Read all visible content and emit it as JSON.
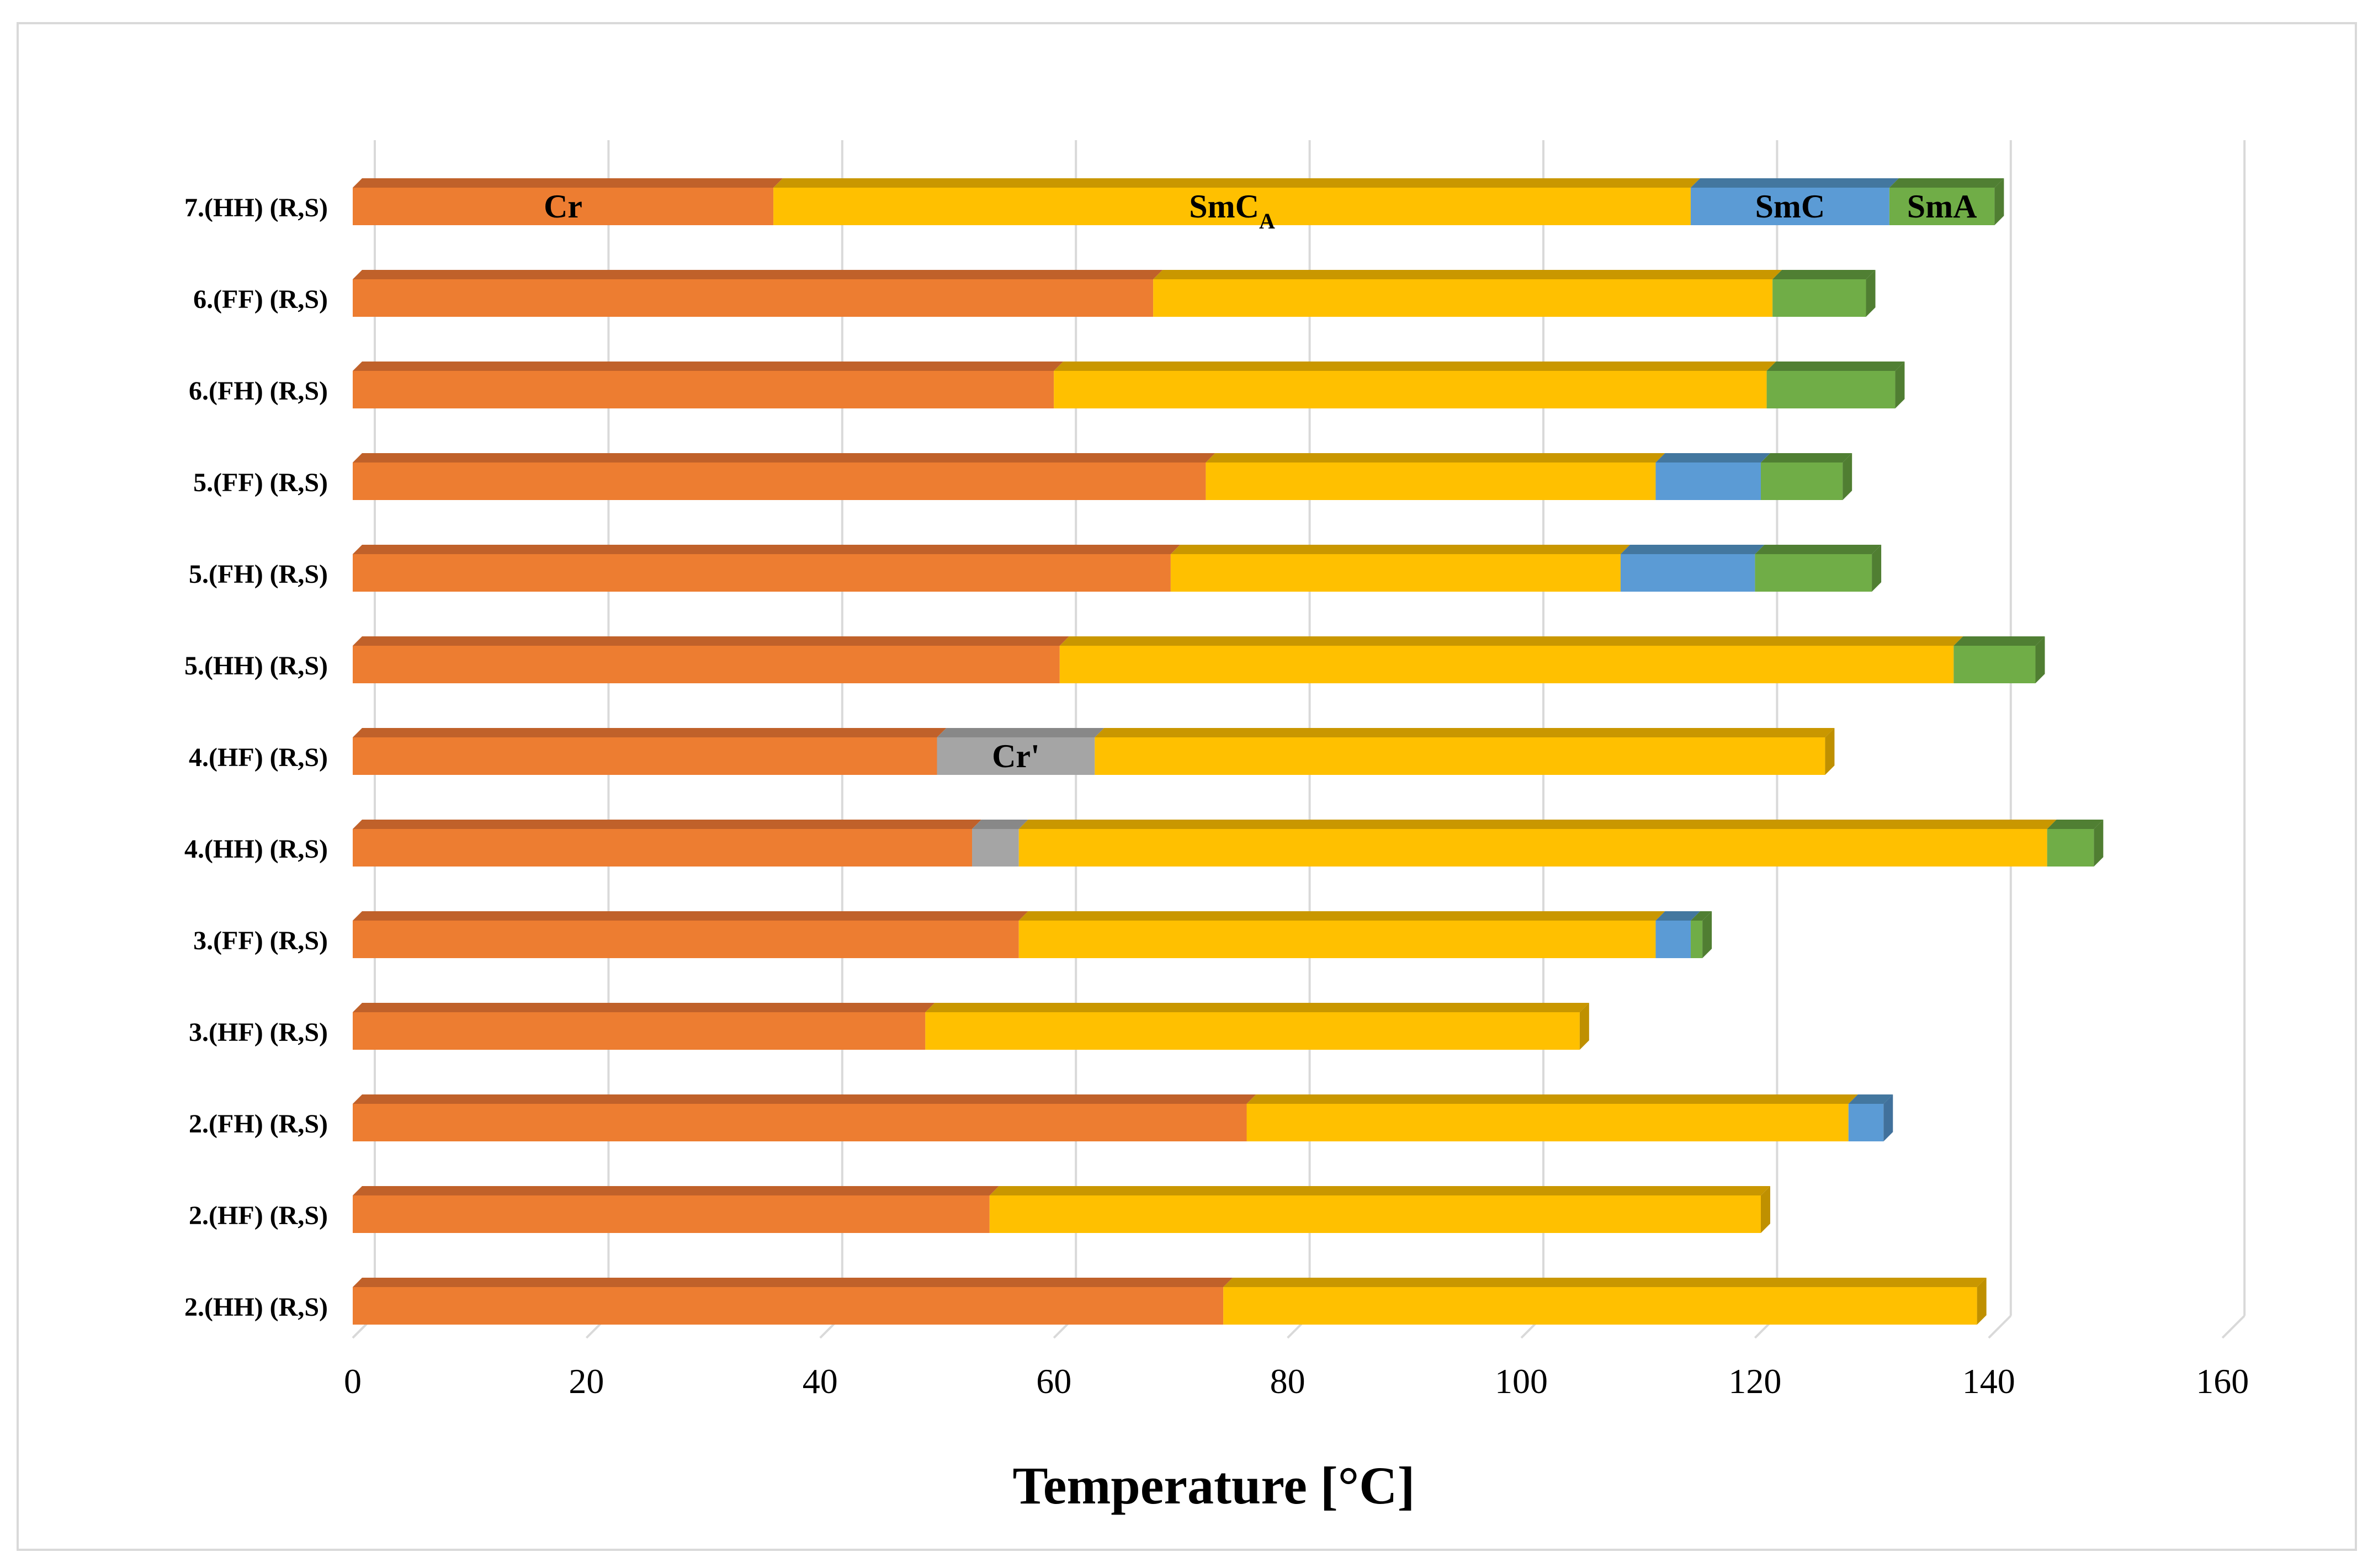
{
  "chart_data": {
    "type": "bar",
    "orientation": "horizontal",
    "stacked": true,
    "style": "3d",
    "xlabel": "Temperature [°C]",
    "xlim": [
      0,
      160
    ],
    "xticks": [
      0,
      20,
      40,
      60,
      80,
      100,
      120,
      140,
      160
    ],
    "grid": true,
    "phases": [
      {
        "name": "Cr",
        "color": "#ED7D31",
        "top_color": "#C0612A",
        "side_color": "#B85A22"
      },
      {
        "name": "Cr'",
        "color": "#A5A5A5",
        "top_color": "#888888",
        "side_color": "#7F7F7F"
      },
      {
        "name": "SmC_A",
        "color": "#FFC000",
        "top_color": "#C99700",
        "side_color": "#BF9000"
      },
      {
        "name": "SmC",
        "color": "#5B9BD5",
        "top_color": "#43779F",
        "side_color": "#41719C"
      },
      {
        "name": "SmA",
        "color": "#70AD47",
        "top_color": "#507F33",
        "side_color": "#507E32"
      }
    ],
    "categories": [
      "7.(HH) (R,S)",
      "6.(FF) (R,S)",
      "6.(FH) (R,S)",
      "5.(FF) (R,S)",
      "5.(FH) (R,S)",
      "5.(HH) (R,S)",
      "4.(HF) (R,S)",
      "4.(HH) (R,S)",
      "3.(FF) (R,S)",
      "3.(HF) (R,S)",
      "2.(FH) (R,S)",
      "2.(HF) (R,S)",
      "2.(HH) (R,S)"
    ],
    "bars": [
      {
        "segments": [
          {
            "phase": "Cr",
            "value": 36
          },
          {
            "phase": "SmC_A",
            "value": 78.5
          },
          {
            "phase": "SmC",
            "value": 17
          },
          {
            "phase": "SmA",
            "value": 9
          }
        ]
      },
      {
        "segments": [
          {
            "phase": "Cr",
            "value": 68.5
          },
          {
            "phase": "SmC_A",
            "value": 53
          },
          {
            "phase": "SmA",
            "value": 8
          }
        ]
      },
      {
        "segments": [
          {
            "phase": "Cr",
            "value": 60
          },
          {
            "phase": "SmC_A",
            "value": 61
          },
          {
            "phase": "SmA",
            "value": 11
          }
        ]
      },
      {
        "segments": [
          {
            "phase": "Cr",
            "value": 73
          },
          {
            "phase": "SmC_A",
            "value": 38.5
          },
          {
            "phase": "SmC",
            "value": 9
          },
          {
            "phase": "SmA",
            "value": 7
          }
        ]
      },
      {
        "segments": [
          {
            "phase": "Cr",
            "value": 70
          },
          {
            "phase": "SmC_A",
            "value": 38.5
          },
          {
            "phase": "SmC",
            "value": 11.5
          },
          {
            "phase": "SmA",
            "value": 10
          }
        ]
      },
      {
        "segments": [
          {
            "phase": "Cr",
            "value": 60.5
          },
          {
            "phase": "SmC_A",
            "value": 76.5
          },
          {
            "phase": "SmA",
            "value": 7
          }
        ]
      },
      {
        "segments": [
          {
            "phase": "Cr",
            "value": 50
          },
          {
            "phase": "Cr'",
            "value": 13.5
          },
          {
            "phase": "SmC_A",
            "value": 62.5
          }
        ]
      },
      {
        "segments": [
          {
            "phase": "Cr",
            "value": 53
          },
          {
            "phase": "Cr'",
            "value": 4
          },
          {
            "phase": "SmC_A",
            "value": 88
          },
          {
            "phase": "SmA",
            "value": 4
          }
        ]
      },
      {
        "segments": [
          {
            "phase": "Cr",
            "value": 57
          },
          {
            "phase": "SmC_A",
            "value": 54.5
          },
          {
            "phase": "SmC",
            "value": 3
          },
          {
            "phase": "SmA",
            "value": 1
          }
        ]
      },
      {
        "segments": [
          {
            "phase": "Cr",
            "value": 49
          },
          {
            "phase": "SmC_A",
            "value": 56
          }
        ]
      },
      {
        "segments": [
          {
            "phase": "Cr",
            "value": 76.5
          },
          {
            "phase": "SmC_A",
            "value": 51.5
          },
          {
            "phase": "SmC",
            "value": 3
          }
        ]
      },
      {
        "segments": [
          {
            "phase": "Cr",
            "value": 54.5
          },
          {
            "phase": "SmC_A",
            "value": 66
          }
        ]
      },
      {
        "segments": [
          {
            "phase": "Cr",
            "value": 74.5
          },
          {
            "phase": "SmC_A",
            "value": 64.5
          }
        ]
      }
    ],
    "annotations": [
      {
        "bar": 0,
        "segment": 0,
        "text": "Cr"
      },
      {
        "bar": 0,
        "segment": 1,
        "text": "SmC",
        "subscript": "A"
      },
      {
        "bar": 0,
        "segment": 2,
        "text": "SmC"
      },
      {
        "bar": 0,
        "segment": 3,
        "text": "SmA"
      },
      {
        "bar": 6,
        "segment": 1,
        "text": "Cr'"
      }
    ]
  }
}
